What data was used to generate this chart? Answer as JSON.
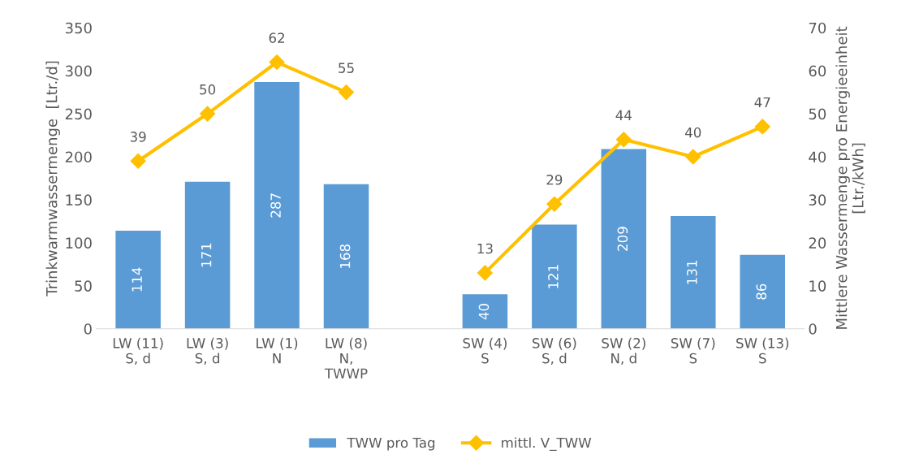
{
  "chart_data": {
    "type": "bar",
    "categories": [
      "LW (11)\nS, d",
      "LW (3)\nS, d",
      "LW (1)\nN",
      "LW (8)\nN,\nTWWP",
      null,
      "SW (4)\nS",
      "SW (6)\nS, d",
      "SW (2)\nN, d",
      "SW (7)\nS",
      "SW (13)\nS"
    ],
    "series": [
      {
        "name": "TWW pro Tag",
        "color": "#5b9bd5",
        "values": [
          114,
          171,
          287,
          168,
          null,
          40,
          121,
          209,
          131,
          86
        ]
      },
      {
        "name": "mittl. V_TWW",
        "type": "line",
        "axis": "y2",
        "color": "#ffc000",
        "marker": "diamond",
        "values": [
          39,
          50,
          62,
          55,
          null,
          13,
          29,
          44,
          40,
          47
        ]
      }
    ],
    "ylabel": "Trinkwarmwassermenge  [Ltr./d]",
    "y2label": "Mittlere Wassermenge pro Energieeinheit\n[Ltr./kWh]",
    "ylim": [
      0,
      350
    ],
    "yticks": [
      0,
      50,
      100,
      150,
      200,
      250,
      300,
      350
    ],
    "y2lim": [
      0,
      70
    ],
    "y2ticks": [
      0,
      10,
      20,
      30,
      40,
      50,
      60,
      70
    ],
    "data_labels": true,
    "grid": false,
    "legend": "bottom"
  }
}
